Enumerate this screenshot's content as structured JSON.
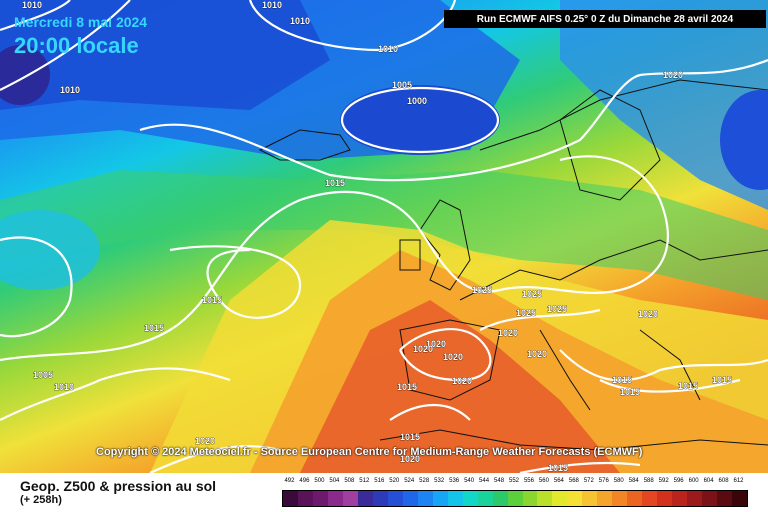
{
  "header": {
    "date": "Mercredi 8 mai 2024",
    "time": "20:00 locale",
    "run": "Run ECMWF AIFS 0.25° 0 Z du Dimanche 28 avril 2024"
  },
  "copyright": "Copyright © 2024 Meteociel.fr - Source European Centre for Medium-Range Weather Forecasts (ECMWF)",
  "footer": {
    "title": "Geop. Z500 & pression au sol",
    "subtitle": "(+ 258h)"
  },
  "legend": {
    "labels": [
      "492",
      "496",
      "500",
      "504",
      "508",
      "512",
      "516",
      "520",
      "524",
      "528",
      "532",
      "536",
      "540",
      "544",
      "548",
      "552",
      "556",
      "560",
      "564",
      "568",
      "572",
      "576",
      "580",
      "584",
      "588",
      "592",
      "596",
      "600",
      "604",
      "608",
      "612"
    ],
    "colors": [
      "#3a0b3a",
      "#5a1259",
      "#6d1a6e",
      "#8a2a8a",
      "#a03fa0",
      "#3b2a9a",
      "#2d3bb8",
      "#2550d6",
      "#1f66e8",
      "#1d84f2",
      "#17a6f5",
      "#14c3e9",
      "#12d6c8",
      "#19d39a",
      "#2cc96a",
      "#5bcf3c",
      "#8ad62f",
      "#b9e02a",
      "#e2e82b",
      "#f5e034",
      "#f6c431",
      "#f5a52b",
      "#f28524",
      "#ec6422",
      "#e34620",
      "#d3311e",
      "#bb241d",
      "#9b1a1b",
      "#7b1218",
      "#5a0b12",
      "#3a050a"
    ]
  },
  "map": {
    "isobar_labels": [
      {
        "text": "1010"
      },
      {
        "text": "1010"
      },
      {
        "text": "1010"
      },
      {
        "text": "1010"
      },
      {
        "text": "1005"
      },
      {
        "text": "1000"
      },
      {
        "text": "1020"
      },
      {
        "text": "1015"
      },
      {
        "text": "1010"
      },
      {
        "text": "1015"
      },
      {
        "text": "1015"
      },
      {
        "text": "1005"
      },
      {
        "text": "1010"
      },
      {
        "text": "1025"
      },
      {
        "text": "1025"
      },
      {
        "text": "1025"
      },
      {
        "text": "1025"
      },
      {
        "text": "1020"
      },
      {
        "text": "1020"
      },
      {
        "text": "1020"
      },
      {
        "text": "1020"
      },
      {
        "text": "1020"
      },
      {
        "text": "1020"
      },
      {
        "text": "1020"
      },
      {
        "text": "1015"
      },
      {
        "text": "1015"
      },
      {
        "text": "1015"
      },
      {
        "text": "1015"
      },
      {
        "text": "1015"
      },
      {
        "text": "1015"
      },
      {
        "text": "1020"
      },
      {
        "text": "1020"
      },
      {
        "text": "1015"
      }
    ]
  }
}
